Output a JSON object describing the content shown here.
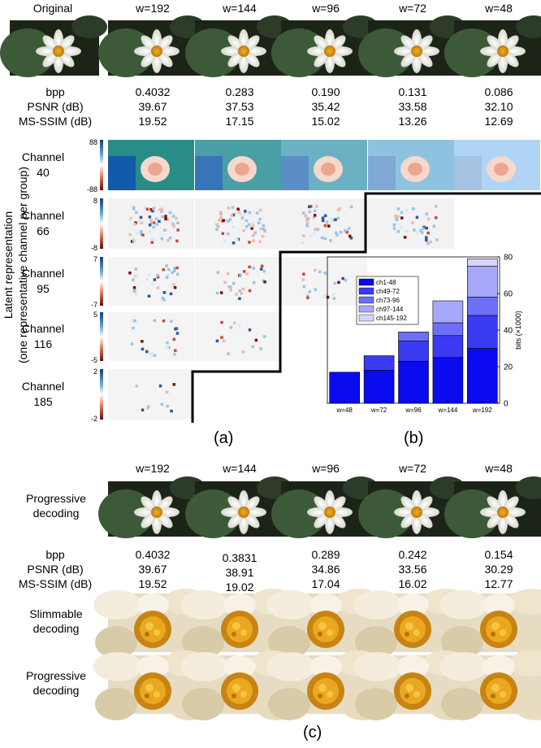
{
  "panel_a": {
    "headers": [
      "Original",
      "w=192",
      "w=144",
      "w=96",
      "w=72",
      "w=48"
    ],
    "metric_labels": [
      "bpp",
      "PSNR (dB)",
      "MS-SSIM (dB)"
    ],
    "metric_values": [
      [
        "0.4032",
        "39.67",
        "19.52"
      ],
      [
        "0.283",
        "37.53",
        "17.15"
      ],
      [
        "0.190",
        "35.42",
        "15.02"
      ],
      [
        "0.131",
        "33.58",
        "13.26"
      ],
      [
        "0.086",
        "32.10",
        "12.69"
      ]
    ],
    "ylabel_line1": "Latent representation",
    "ylabel_line2": "(one representative channel per group)",
    "channels": [
      {
        "label1": "Channel",
        "label2": "40",
        "max": "88",
        "min": "-88",
        "maps": 5
      },
      {
        "label1": "Channel",
        "label2": "66",
        "max": "8",
        "min": "-8",
        "maps": 4
      },
      {
        "label1": "Channel",
        "label2": "95",
        "max": "7",
        "min": "-7",
        "maps": 3
      },
      {
        "label1": "Channel",
        "label2": "116",
        "max": "5",
        "min": "-5",
        "maps": 2
      },
      {
        "label1": "Channel",
        "label2": "185",
        "max": "2",
        "min": "-2",
        "maps": 1
      }
    ],
    "caption": "(a)"
  },
  "chart_data": {
    "type": "bar",
    "stacked": true,
    "categories": [
      "w=48",
      "w=72",
      "w=96",
      "w=144",
      "w=192"
    ],
    "series": [
      {
        "name": "ch1-48",
        "color": "#0a0aee",
        "values": [
          17,
          18,
          23,
          25,
          30
        ]
      },
      {
        "name": "ch49-72",
        "color": "#3a3af2",
        "values": [
          0,
          8,
          11,
          12,
          18
        ]
      },
      {
        "name": "ch73-96",
        "color": "#6e6ef6",
        "values": [
          0,
          0,
          5,
          7,
          10
        ]
      },
      {
        "name": "ch97-144",
        "color": "#a8a8fa",
        "values": [
          0,
          0,
          0,
          12,
          17
        ]
      },
      {
        "name": "ch145-192",
        "color": "#d6d6fd",
        "values": [
          0,
          0,
          0,
          0,
          4
        ]
      }
    ],
    "ylabel": "bits (×1000)",
    "ylim": [
      0,
      80
    ],
    "yticks": [
      "0",
      "20",
      "40",
      "60",
      "80"
    ],
    "legend": "top-left",
    "caption": "(b)"
  },
  "panel_c": {
    "headers": [
      "w=192",
      "w=144",
      "w=96",
      "w=72",
      "w=48"
    ],
    "row1_label": [
      "Progressive",
      "decoding"
    ],
    "metric_labels": [
      "bpp",
      "PSNR (dB)",
      "MS-SSIM (dB)"
    ],
    "metric_values": [
      [
        "0.4032",
        "39.67",
        "19.52"
      ],
      [
        "0.3831",
        "38.91",
        "19.02"
      ],
      [
        "0.289",
        "34.86",
        "17.04"
      ],
      [
        "0.242",
        "33.56",
        "16.02"
      ],
      [
        "0.154",
        "30.29",
        "12.77"
      ]
    ],
    "row2_label": [
      "Slimmable",
      "decoding"
    ],
    "row3_label": [
      "Progressive",
      "decoding"
    ],
    "caption": "(c)"
  }
}
